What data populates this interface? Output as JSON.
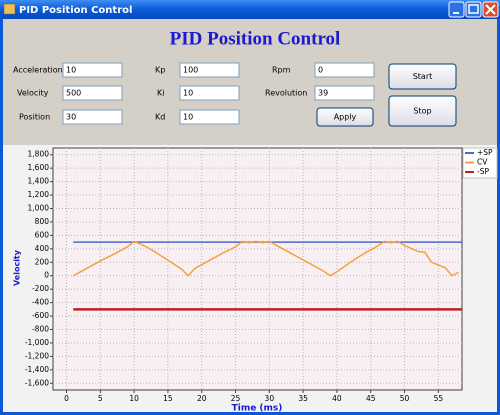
{
  "window": {
    "title": "PID Position Control"
  },
  "header": {
    "title": "PID Position Control"
  },
  "form": {
    "fields": [
      {
        "label": "Acceleration",
        "value": "10"
      },
      {
        "label": "Velocity",
        "value": "500"
      },
      {
        "label": "Position",
        "value": "30"
      },
      {
        "label": "Kp",
        "value": "100"
      },
      {
        "label": "Ki",
        "value": "10"
      },
      {
        "label": "Kd",
        "value": "10"
      },
      {
        "label": "Rpm",
        "value": "0"
      },
      {
        "label": "Revolution",
        "value": "39"
      }
    ]
  },
  "buttons": {
    "apply": "Apply",
    "start": "Start",
    "stop": "Stop"
  },
  "chart_data": {
    "type": "line",
    "xlabel": "Time (ms)",
    "ylabel": "Velocity",
    "xlim": [
      -2,
      58.5
    ],
    "ylim": [
      -1700,
      1900
    ],
    "xticks": [
      0,
      5,
      10,
      15,
      20,
      25,
      30,
      35,
      40,
      45,
      50,
      55
    ],
    "yticks": [
      {
        "value": 1800,
        "label": "1,800"
      },
      {
        "value": 1600,
        "label": "1,600"
      },
      {
        "value": 1400,
        "label": "1,400"
      },
      {
        "value": 1200,
        "label": "1,200"
      },
      {
        "value": 1000,
        "label": "1,000"
      },
      800,
      600,
      400,
      200,
      0,
      -200,
      -400,
      -600,
      -800,
      {
        "value": -1000,
        "label": "-1,000"
      },
      {
        "value": -1200,
        "label": "-1,200"
      },
      {
        "value": -1400,
        "label": "-1,400"
      },
      {
        "value": -1600,
        "label": "-1,600"
      }
    ],
    "grid": true,
    "legend": "upper right",
    "series": [
      {
        "name": "+SP",
        "color": "#4a6ad0",
        "x": [
          1,
          58.5
        ],
        "values": [
          500,
          500
        ]
      },
      {
        "name": "CV",
        "color": "#f5a040",
        "x": [
          1,
          3,
          5,
          7,
          9,
          10,
          11,
          12,
          13,
          15,
          17,
          18,
          19,
          21,
          23,
          25,
          26,
          27,
          28,
          29,
          30,
          32,
          34,
          36,
          38,
          39,
          40,
          42,
          44,
          46,
          47,
          48,
          49,
          50,
          52,
          53,
          54,
          56,
          57,
          58
        ],
        "values": [
          0,
          110,
          220,
          320,
          430,
          510,
          470,
          420,
          360,
          230,
          100,
          0,
          110,
          220,
          330,
          430,
          510,
          490,
          510,
          490,
          510,
          400,
          290,
          180,
          70,
          0,
          60,
          200,
          330,
          440,
          510,
          490,
          510,
          450,
          360,
          350,
          200,
          120,
          0,
          50
        ]
      },
      {
        "name": "-SP",
        "color": "#c02020",
        "x": [
          1,
          58.5
        ],
        "values": [
          -500,
          -500
        ]
      }
    ]
  }
}
